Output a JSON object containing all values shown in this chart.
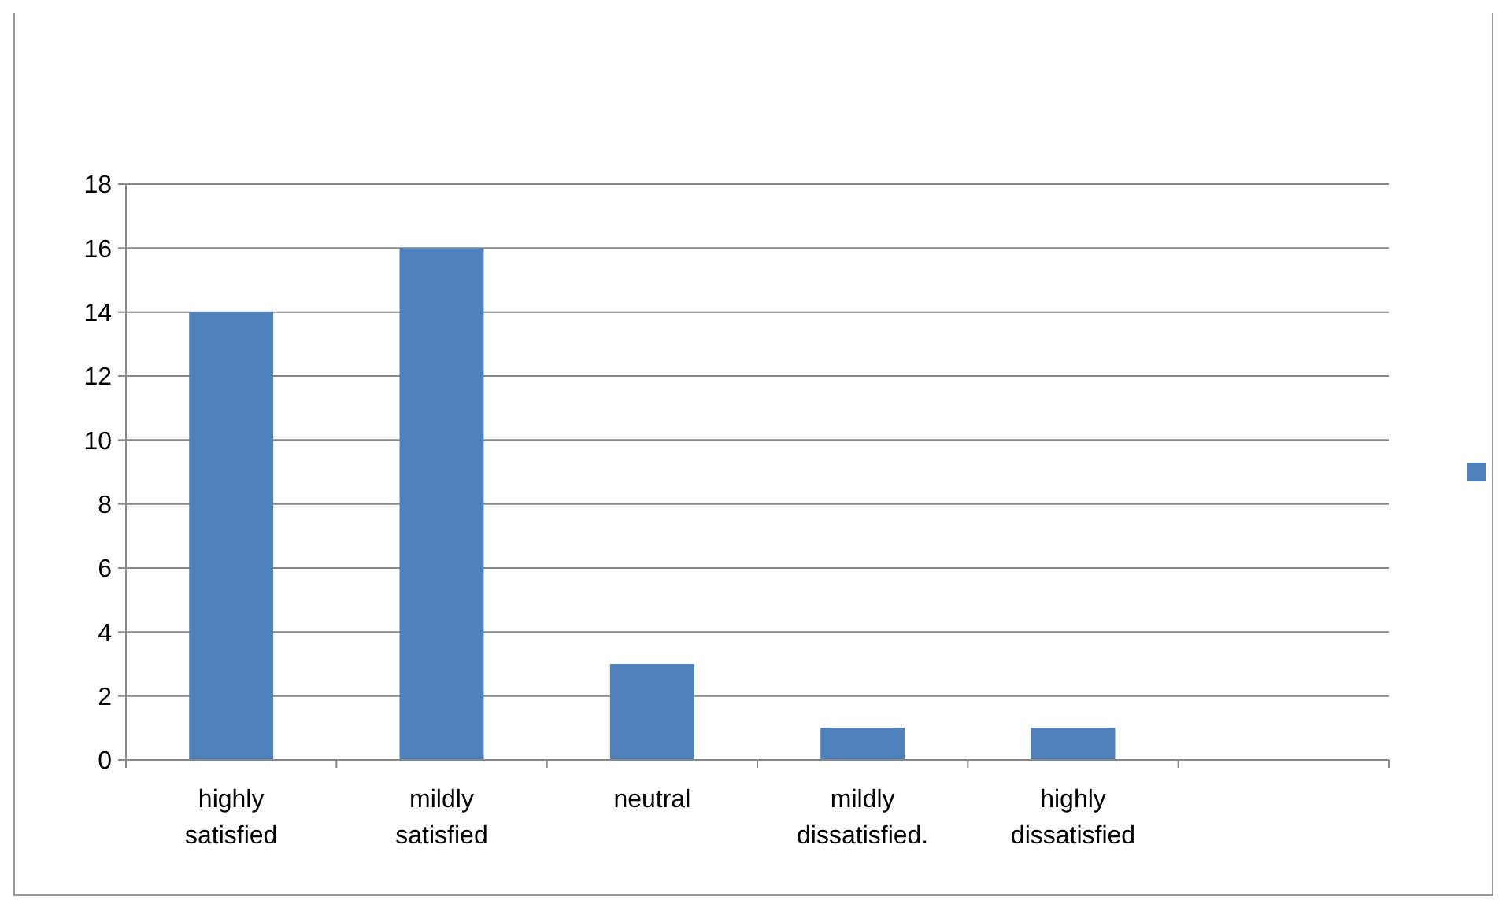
{
  "chart_data": {
    "type": "bar",
    "categories": [
      "highly satisfied",
      "mildly satisfied",
      "neutral",
      "mildly dissatisfied.",
      "highly dissatisfied",
      null
    ],
    "values": [
      14,
      16,
      3,
      1,
      1,
      null
    ],
    "color": "#4f81bd",
    "ylim": [
      0,
      18
    ],
    "yticks": [
      0,
      2,
      4,
      6,
      8,
      10,
      12,
      14,
      16,
      18
    ],
    "grid": "y"
  }
}
